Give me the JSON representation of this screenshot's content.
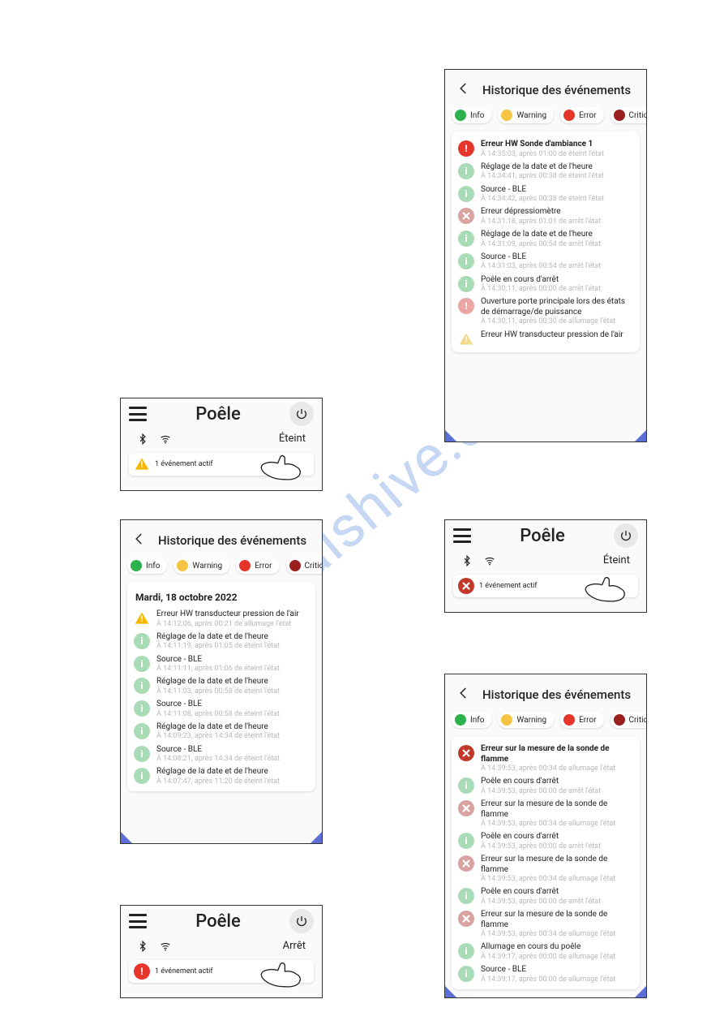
{
  "watermark": "manualshive.com",
  "colors": {
    "info": "#2bb24c",
    "info_faded": "#a9dcb6",
    "warning": "#f6c343",
    "warning_tri": "#f6b700",
    "error": "#e6352b",
    "error_faded": "#e9a6a3",
    "critical": "#9a1f1f",
    "x_badge": "#c0392b",
    "x_faded": "#d9a3a0",
    "corner": "#5b6fd6",
    "power_bg": "#e8e8e8"
  },
  "filters": {
    "info": "Info",
    "warning": "Warning",
    "error": "Error",
    "critical": "Critical"
  },
  "poele": {
    "title": "Poêle",
    "status_eteint": "Éteint",
    "status_arret": "Arrêt",
    "chip_text": "1 événement actif"
  },
  "hist": {
    "title": "Historique des événements"
  },
  "panel_left_hist": {
    "date": "Mardi, 18 octobre 2022",
    "events": [
      {
        "icon": "warn_tri",
        "title": "Erreur HW transducteur pression de l'air",
        "sub": "À 14:12:06, après 00:21 de allumage l'état"
      },
      {
        "icon": "info_f",
        "title": "Réglage de la date et de l'heure",
        "sub": "À 14:11:19, après 01:05 de éteint l'état"
      },
      {
        "icon": "info_f",
        "title": "Source - BLE",
        "sub": "À 14:11:11, après 01:06 de éteint l'état"
      },
      {
        "icon": "info_f",
        "title": "Réglage de la date et de l'heure",
        "sub": "À 14:11:03, après 00:58 de éteint l'état"
      },
      {
        "icon": "info_f",
        "title": "Source - BLE",
        "sub": "À 14:11:08, après 00:58 de éteint l'état"
      },
      {
        "icon": "info_f",
        "title": "Réglage de la date et de l'heure",
        "sub": "À 14:09:23, après 14:34 de éteint l'état"
      },
      {
        "icon": "info_f",
        "title": "Source - BLE",
        "sub": "À 14:08:21, après 14:34 de éteint l'état"
      },
      {
        "icon": "info_f",
        "title": "Réglage de la date et de l'heure",
        "sub": "À 14:07:47, après 11:20 de éteint l'état"
      }
    ]
  },
  "panel_top_right": {
    "events": [
      {
        "icon": "error",
        "bold": true,
        "title": "Erreur HW Sonde d'ambiance 1",
        "sub": "À 14:35:03, après 01:00 de éteint l'état"
      },
      {
        "icon": "info_f",
        "title": "Réglage de la date et de l'heure",
        "sub": "À 14:34:41, après 00:38 de éteint l'état"
      },
      {
        "icon": "info_f",
        "title": "Source - BLE",
        "sub": "À 14:34:42, après 00:38 de éteint l'état"
      },
      {
        "icon": "x_f",
        "title": "Erreur dépressiomètre",
        "sub": "À 14:31:18, après 01:01 de arrêt l'état"
      },
      {
        "icon": "info_f",
        "title": "Réglage de la date et de l'heure",
        "sub": "À 14:31:09, après 00:54 de arrêt l'état"
      },
      {
        "icon": "info_f",
        "title": "Source - BLE",
        "sub": "À 14:31:03, après 00:54 de arrêt l'état"
      },
      {
        "icon": "info_f",
        "title": "Poêle en cours d'arrêt",
        "sub": "À 14:30:11, après 00:00 de arrêt l'état"
      },
      {
        "icon": "error_f",
        "title": "Ouverture porte principale lors des états de démarrage/de puissance",
        "sub": "À 14:30:11, après 00:30 de allumage l'état"
      },
      {
        "icon": "warn_tri_f",
        "title": "Erreur HW transducteur pression de l'air",
        "sub": ""
      }
    ]
  },
  "panel_bottom_right": {
    "events": [
      {
        "icon": "x",
        "bold": true,
        "title": "Erreur sur la mesure de la sonde de flamme",
        "sub": "À 14:39:53, après 00:34 de allumage l'état"
      },
      {
        "icon": "info_f",
        "title": "Poêle en cours d'arrêt",
        "sub": "À 14:39:53, après 00:00 de arrêt l'état"
      },
      {
        "icon": "x_f",
        "title": "Erreur sur la mesure de la sonde de flamme",
        "sub": "À 14:39:53, après 00:34 de allumage l'état"
      },
      {
        "icon": "info_f",
        "title": "Poêle en cours d'arrêt",
        "sub": "À 14:39:53, après 00:00 de arrêt l'état"
      },
      {
        "icon": "x_f",
        "title": "Erreur sur la mesure de la sonde de flamme",
        "sub": "À 14:39:53, après 00:34 de allumage l'état"
      },
      {
        "icon": "info_f",
        "title": "Poêle en cours d'arrêt",
        "sub": "À 14:39:53, après 00:00 de arrêt l'état"
      },
      {
        "icon": "x_f",
        "title": "Erreur sur la mesure de la sonde de flamme",
        "sub": "À 14:39:53, après 00:34 de allumage l'état"
      },
      {
        "icon": "info_f",
        "title": "Allumage en cours du poêle",
        "sub": "À 14:39:17, après 00:00 de allumage l'état"
      },
      {
        "icon": "info_f",
        "title": "Source - BLE",
        "sub": "À 14:39:17, après 00:00 de allumage l'état"
      }
    ]
  }
}
